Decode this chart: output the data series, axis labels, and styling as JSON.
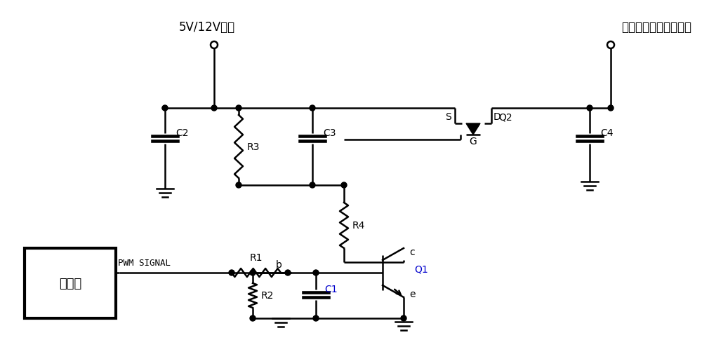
{
  "title_left": "5V/12V电源",
  "title_right": "功能模块供电输入接口",
  "label_main_chip": "主芗片",
  "label_pwm": "PWM SIGNAL",
  "C2": "C2",
  "C3": "C3",
  "C4": "C4",
  "R3": "R3",
  "R4": "R4",
  "R1": "R1",
  "R2": "R2",
  "C1": "C1",
  "Q1": "Q1",
  "Q2": "Q2",
  "b": "b",
  "c": "c",
  "e": "e",
  "S": "S",
  "D": "D",
  "G": "G",
  "line_color": "#000000",
  "bg_color": "#ffffff",
  "lw": 1.8
}
